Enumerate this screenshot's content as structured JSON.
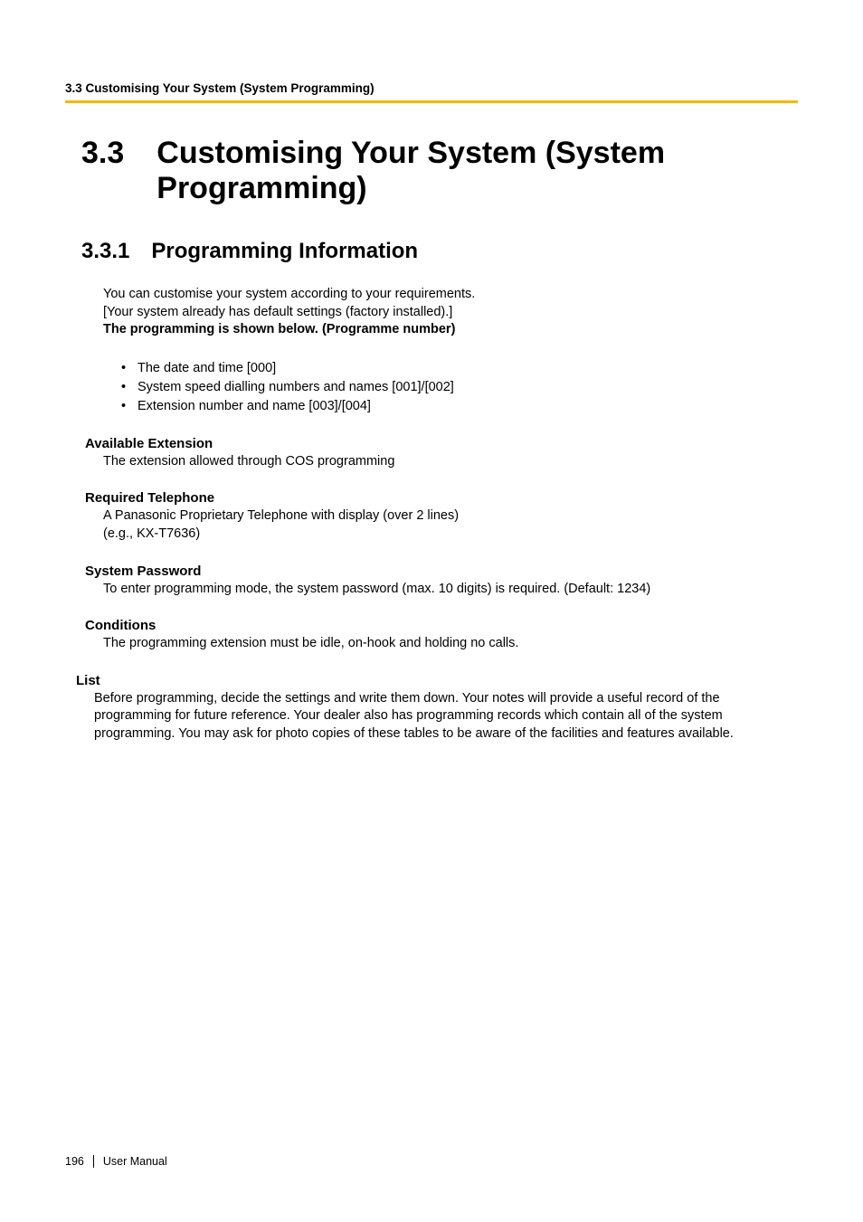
{
  "header": {
    "runningHead": "3.3 Customising Your System (System Programming)"
  },
  "accent": {
    "color": "#f5b800"
  },
  "chapter": {
    "number": "3.3",
    "title": "Customising Your System (System Programming)"
  },
  "section": {
    "number": "3.3.1",
    "title": "Programming Information"
  },
  "intro": {
    "line1": "You can customise your system according to your requirements.",
    "line2": "[Your system already has default settings (factory installed).]",
    "line3": "The programming is shown below. (Programme number)"
  },
  "bullets": {
    "items": [
      "The date and time [000]",
      "System speed dialling numbers and names [001]/[002]",
      "Extension number and name [003]/[004]"
    ]
  },
  "subsections": [
    {
      "heading": "Available Extension",
      "body": "The extension allowed through COS programming"
    },
    {
      "heading": "Required Telephone",
      "body": "A Panasonic Proprietary Telephone with display (over 2 lines)\n(e.g., KX-T7636)"
    },
    {
      "heading": "System Password",
      "body": "To enter programming mode, the system password (max. 10 digits) is required. (Default: 1234)"
    },
    {
      "heading": "Conditions",
      "body": "The programming extension must be idle, on-hook and holding no calls."
    }
  ],
  "listSection": {
    "heading": "List",
    "body": "Before programming, decide the settings and write them down. Your notes will provide a useful record of the programming for future reference. Your dealer also has programming records which contain all of the system programming. You may ask for photo copies of these tables to be aware of the facilities and features available."
  },
  "footer": {
    "page": "196",
    "label": "User Manual"
  }
}
